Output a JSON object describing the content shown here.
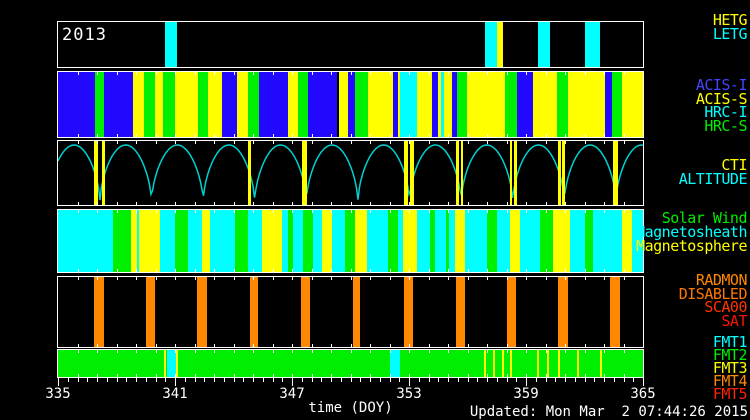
{
  "page": {
    "year": "2013",
    "updated": "Updated: Mon Mar  2 07:44:26 2015"
  },
  "chart_data": {
    "type": "timeline-bands",
    "xlabel": "time (DOY)",
    "x_range": [
      335,
      365
    ],
    "axis_major_ticks": [
      335,
      341,
      347,
      353,
      359,
      365
    ],
    "minor_tick_interval": 0.5,
    "band_tick_interval": 1,
    "palette": {
      "blue": "#2208ff",
      "green": "#00ee00",
      "yellow": "#ffff00",
      "cyan": "#00ffff",
      "orange": "#ff8800",
      "curve": "#00d0d0",
      "white": "#ffffff"
    },
    "bands": [
      {
        "id": "grating",
        "segments": [
          [
            340.49,
            341.1,
            "cyan"
          ],
          [
            356.9,
            357.51,
            "cyan"
          ],
          [
            357.51,
            357.82,
            "yellow"
          ],
          [
            359.62,
            360.23,
            "cyan"
          ],
          [
            362.03,
            362.79,
            "cyan"
          ]
        ]
      },
      {
        "id": "instruments",
        "segments": [
          [
            335.0,
            336.9,
            "blue"
          ],
          [
            336.9,
            337.36,
            "green"
          ],
          [
            337.36,
            338.85,
            "blue"
          ],
          [
            338.85,
            339.41,
            "yellow"
          ],
          [
            339.41,
            339.97,
            "green"
          ],
          [
            339.97,
            340.38,
            "yellow"
          ],
          [
            340.38,
            341.0,
            "green"
          ],
          [
            341.0,
            342.18,
            "yellow"
          ],
          [
            342.18,
            342.69,
            "green"
          ],
          [
            342.69,
            343.41,
            "yellow"
          ],
          [
            343.41,
            344.18,
            "blue"
          ],
          [
            344.18,
            344.74,
            "yellow"
          ],
          [
            344.74,
            345.31,
            "green"
          ],
          [
            345.31,
            346.79,
            "blue"
          ],
          [
            346.79,
            347.31,
            "yellow"
          ],
          [
            347.31,
            347.82,
            "green"
          ],
          [
            347.82,
            349.31,
            "blue"
          ],
          [
            349.41,
            349.87,
            "yellow"
          ],
          [
            349.87,
            350.23,
            "blue"
          ],
          [
            350.23,
            350.9,
            "green"
          ],
          [
            350.9,
            352.18,
            "yellow"
          ],
          [
            352.18,
            352.44,
            "blue"
          ],
          [
            352.44,
            352.54,
            "yellow"
          ],
          [
            352.54,
            353.41,
            "cyan"
          ],
          [
            353.41,
            354.18,
            "yellow"
          ],
          [
            354.18,
            354.49,
            "blue"
          ],
          [
            354.49,
            354.64,
            "yellow"
          ],
          [
            354.64,
            354.79,
            "cyan"
          ],
          [
            354.79,
            355.21,
            "yellow"
          ],
          [
            355.21,
            355.46,
            "blue"
          ],
          [
            355.46,
            355.97,
            "green"
          ],
          [
            355.97,
            357.92,
            "yellow"
          ],
          [
            357.92,
            358.54,
            "green"
          ],
          [
            358.54,
            359.36,
            "blue"
          ],
          [
            359.36,
            360.59,
            "yellow"
          ],
          [
            360.59,
            361.15,
            "green"
          ],
          [
            361.15,
            363.05,
            "yellow"
          ],
          [
            363.05,
            363.4,
            "blue"
          ],
          [
            363.4,
            363.92,
            "green"
          ],
          [
            363.92,
            365.0,
            "yellow"
          ]
        ]
      },
      {
        "id": "altitude",
        "curve": {
          "perigee_t0": 337.15,
          "period": 2.646,
          "shape_exp": 0.55
        },
        "events": [
          [
            336.95,
            0.2,
            "yellow"
          ],
          [
            337.33,
            0.15,
            "yellow"
          ],
          [
            344.82,
            0.15,
            "yellow"
          ],
          [
            347.64,
            0.26,
            "yellow"
          ],
          [
            352.85,
            0.2,
            "yellow"
          ],
          [
            353.15,
            0.2,
            "yellow"
          ],
          [
            355.49,
            0.15,
            "yellow"
          ],
          [
            355.72,
            0.1,
            "yellow"
          ],
          [
            358.23,
            0.1,
            "yellow"
          ],
          [
            358.46,
            0.15,
            "yellow"
          ],
          [
            360.72,
            0.15,
            "yellow"
          ],
          [
            360.92,
            0.15,
            "yellow"
          ],
          [
            363.59,
            0.26,
            "yellow"
          ]
        ]
      },
      {
        "id": "solar-wind",
        "segments": [
          [
            335.0,
            337.82,
            "cyan"
          ],
          [
            337.82,
            338.74,
            "green"
          ],
          [
            338.74,
            339.05,
            "yellow"
          ],
          [
            339.05,
            339.15,
            "cyan"
          ],
          [
            339.15,
            340.23,
            "yellow"
          ],
          [
            340.23,
            341.0,
            "cyan"
          ],
          [
            341.0,
            341.67,
            "green"
          ],
          [
            341.67,
            342.38,
            "cyan"
          ],
          [
            342.38,
            342.79,
            "yellow"
          ],
          [
            342.79,
            344.08,
            "cyan"
          ],
          [
            344.08,
            344.74,
            "green"
          ],
          [
            344.74,
            345.46,
            "cyan"
          ],
          [
            345.46,
            346.49,
            "yellow"
          ],
          [
            346.49,
            346.79,
            "cyan"
          ],
          [
            346.79,
            347.05,
            "green"
          ],
          [
            347.05,
            347.56,
            "cyan"
          ],
          [
            347.56,
            348.08,
            "green"
          ],
          [
            348.08,
            348.54,
            "cyan"
          ],
          [
            348.54,
            349.05,
            "yellow"
          ],
          [
            349.05,
            349.72,
            "cyan"
          ],
          [
            349.72,
            350.23,
            "green"
          ],
          [
            350.23,
            350.85,
            "yellow"
          ],
          [
            350.85,
            351.92,
            "cyan"
          ],
          [
            351.92,
            352.44,
            "green"
          ],
          [
            352.44,
            352.69,
            "cyan"
          ],
          [
            352.69,
            353.41,
            "yellow"
          ],
          [
            353.41,
            354.08,
            "cyan"
          ],
          [
            354.08,
            354.33,
            "green"
          ],
          [
            354.33,
            354.9,
            "cyan"
          ],
          [
            354.9,
            355.05,
            "green"
          ],
          [
            355.05,
            355.36,
            "cyan"
          ],
          [
            355.36,
            355.87,
            "yellow"
          ],
          [
            355.87,
            357.0,
            "cyan"
          ],
          [
            357.0,
            357.51,
            "green"
          ],
          [
            357.51,
            358.18,
            "cyan"
          ],
          [
            358.18,
            358.69,
            "yellow"
          ],
          [
            358.69,
            359.72,
            "cyan"
          ],
          [
            359.72,
            360.38,
            "green"
          ],
          [
            360.38,
            361.26,
            "yellow"
          ],
          [
            361.26,
            362.03,
            "cyan"
          ],
          [
            362.03,
            362.44,
            "green"
          ],
          [
            362.44,
            363.92,
            "cyan"
          ],
          [
            363.92,
            364.44,
            "yellow"
          ],
          [
            364.44,
            365.0,
            "cyan"
          ]
        ]
      },
      {
        "id": "radmon",
        "events": [
          [
            337.1,
            0.48,
            "orange"
          ],
          [
            339.75,
            0.46,
            "orange"
          ],
          [
            342.4,
            0.5,
            "orange"
          ],
          [
            345.05,
            0.42,
            "orange"
          ],
          [
            347.7,
            0.46,
            "orange"
          ],
          [
            350.33,
            0.36,
            "orange"
          ],
          [
            352.97,
            0.46,
            "orange"
          ],
          [
            355.62,
            0.46,
            "orange"
          ],
          [
            358.26,
            0.46,
            "orange"
          ],
          [
            360.9,
            0.5,
            "orange"
          ],
          [
            363.55,
            0.5,
            "orange"
          ]
        ]
      },
      {
        "id": "telemetry",
        "base": "green",
        "segments": [
          [
            340.59,
            341.1,
            "cyan"
          ],
          [
            352.03,
            352.54,
            "cyan"
          ]
        ],
        "events": [
          [
            340.49,
            0.1,
            "yellow"
          ],
          [
            341.12,
            0.1,
            "yellow"
          ],
          [
            356.9,
            0.1,
            "yellow"
          ],
          [
            357.36,
            0.1,
            "yellow"
          ],
          [
            357.82,
            0.1,
            "yellow"
          ],
          [
            358.23,
            0.1,
            "yellow"
          ],
          [
            359.62,
            0.1,
            "yellow"
          ],
          [
            360.13,
            0.1,
            "yellow"
          ],
          [
            360.69,
            0.1,
            "yellow"
          ],
          [
            361.67,
            0.1,
            "yellow"
          ],
          [
            362.85,
            0.1,
            "yellow"
          ]
        ]
      }
    ],
    "legend_groups": [
      {
        "band": "grating",
        "labels": [
          {
            "text": "HETG",
            "color": "#ffff00"
          },
          {
            "text": "LETG",
            "color": "#00ffff"
          }
        ]
      },
      {
        "band": "instruments",
        "labels": [
          {
            "text": "ACIS-I",
            "color": "#4444ff"
          },
          {
            "text": "ACIS-S",
            "color": "#ffff00"
          },
          {
            "text": "HRC-I",
            "color": "#00ffff"
          },
          {
            "text": "HRC-S",
            "color": "#00ee00"
          }
        ]
      },
      {
        "band": "altitude",
        "labels": [
          {
            "text": "CTI",
            "color": "#ffff00"
          },
          {
            "text": "ALTITUDE",
            "color": "#00ffff"
          }
        ]
      },
      {
        "band": "solar-wind",
        "labels": [
          {
            "text": "Solar Wind",
            "color": "#00ee00"
          },
          {
            "text": "Magnetosheath",
            "color": "#00ffff"
          },
          {
            "text": "Magnetosphere",
            "color": "#ffff00"
          }
        ]
      },
      {
        "band": "radmon",
        "labels": [
          {
            "text": "RADMON",
            "color": "#ff8800"
          },
          {
            "text": "DISABLED",
            "color": "#ff7700"
          },
          {
            "text": "SCA00",
            "color": "#ff3300"
          },
          {
            "text": "SAT",
            "color": "#ff1100"
          }
        ]
      },
      {
        "band": "telemetry",
        "labels": [
          {
            "text": "FMT1",
            "color": "#00ffff"
          },
          {
            "text": "FMT2",
            "color": "#00ee00"
          },
          {
            "text": "FMT3",
            "color": "#ffff00"
          },
          {
            "text": "FMT4",
            "color": "#ff8800"
          },
          {
            "text": "FMT5",
            "color": "#ff2200"
          }
        ]
      }
    ]
  }
}
